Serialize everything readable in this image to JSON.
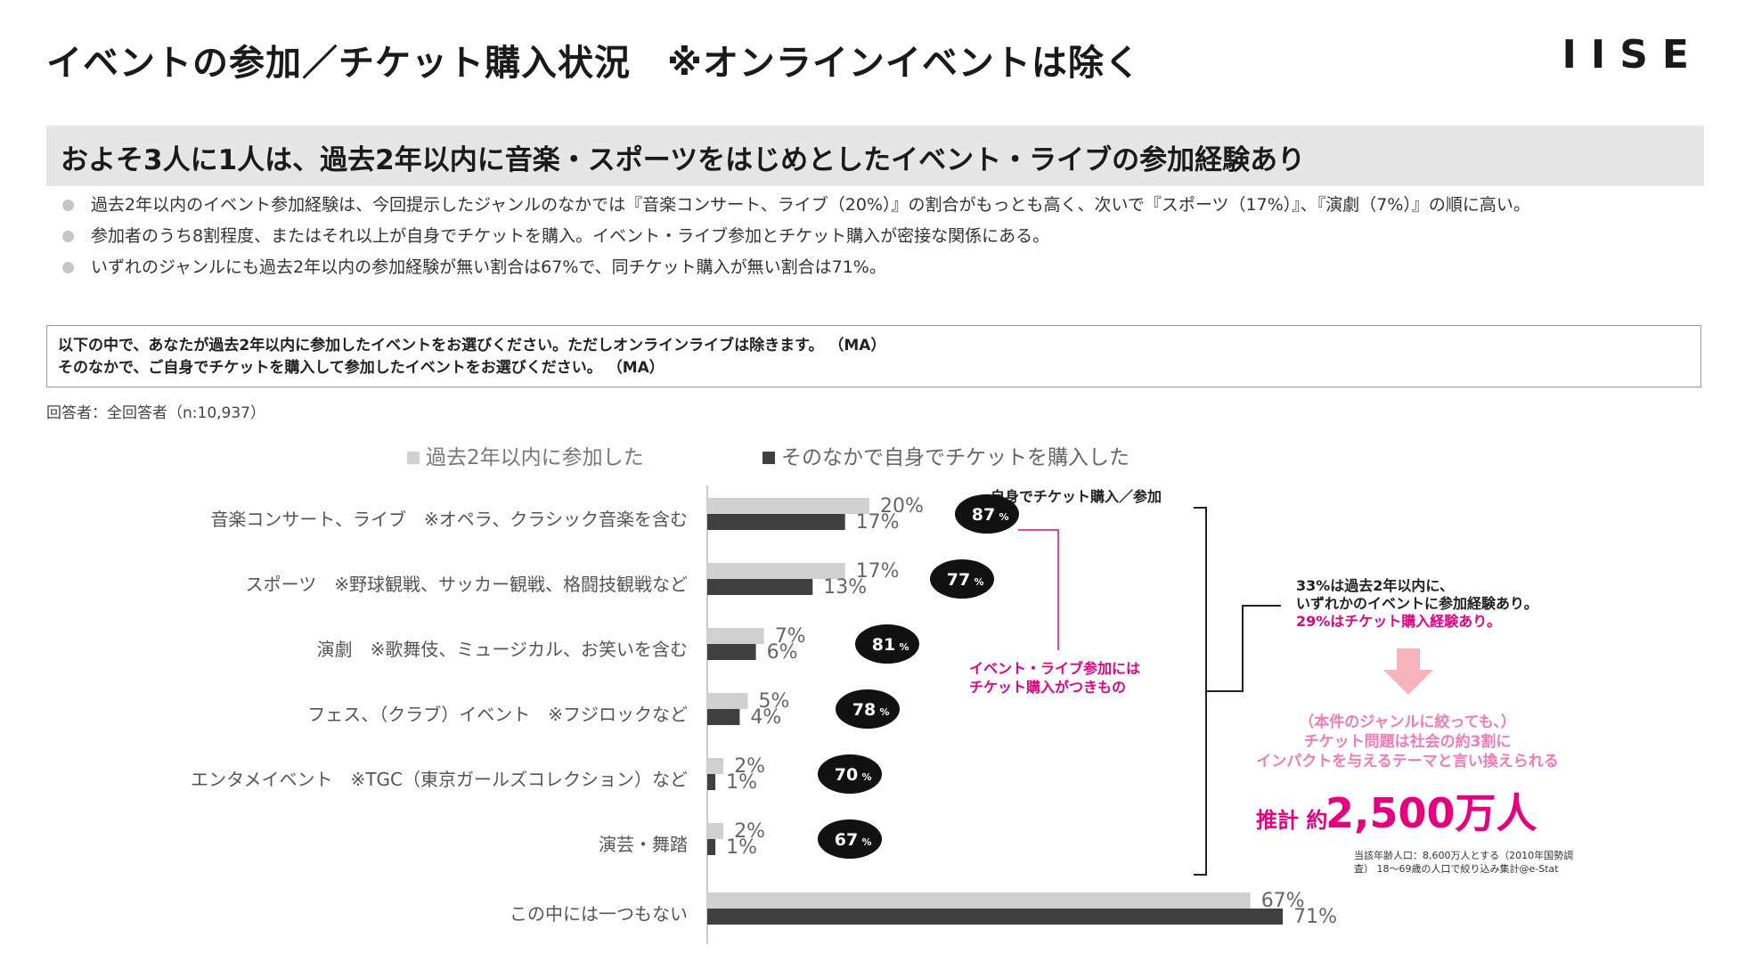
{
  "page": {
    "title": "イベントの参加／チケット購入状況　※オンラインイベントは除く",
    "logo": "IISE"
  },
  "headline": "およそ3人に1人は、過去2年以内に音楽・スポーツをはじめとしたイベント・ライブの参加経験あり",
  "bullets": [
    "過去2年以内のイベント参加経験は、今回提示したジャンルのなかでは『音楽コンサート、ライブ（20%）』の割合がもっとも高く、次いで『スポーツ（17%）』、『演劇（7%）』の順に高い。",
    "参加者のうち8割程度、またはそれ以上が自身でチケットを購入。イベント・ライブ参加とチケット購入が密接な関係にある。",
    "いずれのジャンルにも過去2年以内の参加経験が無い割合は67%で、同チケット購入が無い割合は71%。"
  ],
  "question": {
    "line1": "以下の中で、あなたが過去2年以内に参加したイベントをお選びください。ただしオンラインライブは除きます。 （MA）",
    "line2": "そのなかで、ご自身でチケットを購入して参加したイベントをお選びください。 （MA）"
  },
  "respondents": "回答者：全回答者（n:10,937）",
  "colors": {
    "series1": "#d0d0d0",
    "series2": "#404040",
    "accent": "#e5007f",
    "arrow": "#f8b4bd"
  },
  "chart_data": {
    "type": "bar",
    "orientation": "horizontal",
    "categories": [
      "音楽コンサート、ライブ　※オペラ、クラシック音楽を含む",
      "スポーツ　※野球観戦、サッカー観戦、格闘技観戦など",
      "演劇　※歌舞伎、ミュージカル、お笑いを含む",
      "フェス、（クラブ）イベント　※フジロックなど",
      "エンタメイベント　※TGC（東京ガールズコレクション）など",
      "演芸・舞踏",
      "この中には一つもない"
    ],
    "series": [
      {
        "name": "過去2年以内に参加した",
        "values": [
          20,
          17,
          7,
          5,
          2,
          2,
          67
        ],
        "labels": [
          "20%",
          "17%",
          "7%",
          "5%",
          "2%",
          "2%",
          "67%"
        ]
      },
      {
        "name": "そのなかで自身でチケットを購入した",
        "values": [
          17,
          13,
          6,
          4,
          1,
          1,
          71
        ],
        "labels": [
          "17%",
          "13%",
          "6%",
          "4%",
          "1%",
          "1%",
          "71%"
        ]
      }
    ],
    "ratio_header": "自身でチケット購入／参加",
    "ratios": [
      {
        "num": "87",
        "pct": "%"
      },
      {
        "num": "77",
        "pct": "%"
      },
      {
        "num": "81",
        "pct": "%"
      },
      {
        "num": "78",
        "pct": "%"
      },
      {
        "num": "70",
        "pct": "%"
      },
      {
        "num": "67",
        "pct": "%"
      }
    ],
    "xlim": [
      0,
      100
    ]
  },
  "annotations": {
    "pink_note": [
      "イベント・ライブ参加には",
      "チケット購入がつきもの"
    ],
    "summary": [
      "33%は過去2年以内に、",
      "いずれかのイベントに参加経験あり。"
    ],
    "summary_pink": "29%はチケット購入経験あり。",
    "impact": [
      "（本件のジャンルに絞っても、）",
      "チケット問題は社会の約3割に",
      "インパクトを与えるテーマと言い換えられる"
    ],
    "estimate_prefix": "推計 約",
    "estimate_value": "2,500万人",
    "footnote": [
      "当該年齢人口：8,600万人とする（2010年国勢調",
      "査） 18～69歳の人口で絞り込み集計@e-Stat"
    ]
  }
}
